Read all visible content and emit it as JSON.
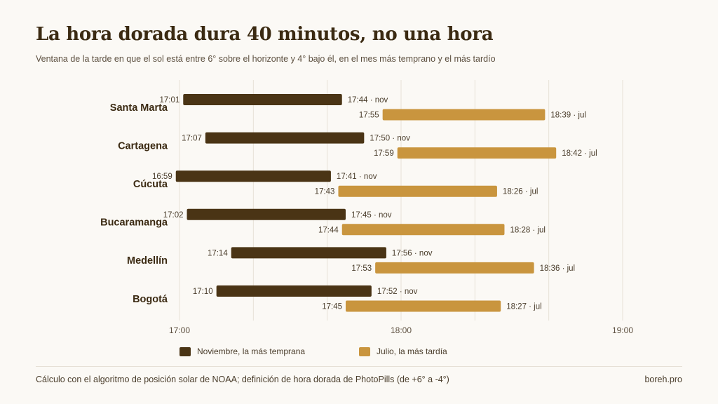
{
  "title": "La hora dorada dura 40 minutos, no una hora",
  "subtitle": "Ventana de la tarde en que el sol está entre 6° sobre el horizonte y 4° bajo él, en el mes más temprano y el más tardío",
  "footer": {
    "source": "Cálculo con el algoritmo de posición solar de NOAA; definición de hora dorada de PhotoPills (de +6° a -4°)",
    "credit": "boreh.pro"
  },
  "colors": {
    "nov": "#4a3415",
    "jul": "#c9953e"
  },
  "chart_data": {
    "type": "bar",
    "orientation": "horizontal-range",
    "x_ticks": [
      "17:00",
      "18:00",
      "19:00"
    ],
    "xlim": [
      "17:00",
      "19:00"
    ],
    "grid": true,
    "legend_position": "bottom",
    "series": [
      {
        "key": "nov",
        "name": "Noviembre, la más temprana",
        "suffix": " · nov"
      },
      {
        "key": "jul",
        "name": "Julio, la más tardía",
        "suffix": " · jul"
      }
    ],
    "categories": [
      "Santa Marta",
      "Cartagena",
      "Cúcuta",
      "Bucaramanga",
      "Medellín",
      "Bogotá"
    ],
    "rows": [
      {
        "city": "Santa Marta",
        "nov": [
          "17:01",
          "17:44"
        ],
        "jul": [
          "17:55",
          "18:39"
        ]
      },
      {
        "city": "Cartagena",
        "nov": [
          "17:07",
          "17:50"
        ],
        "jul": [
          "17:59",
          "18:42"
        ]
      },
      {
        "city": "Cúcuta",
        "nov": [
          "16:59",
          "17:41"
        ],
        "jul": [
          "17:43",
          "18:26"
        ]
      },
      {
        "city": "Bucaramanga",
        "nov": [
          "17:02",
          "17:45"
        ],
        "jul": [
          "17:44",
          "18:28"
        ]
      },
      {
        "city": "Medellín",
        "nov": [
          "17:14",
          "17:56"
        ],
        "jul": [
          "17:53",
          "18:36"
        ]
      },
      {
        "city": "Bogotá",
        "nov": [
          "17:10",
          "17:52"
        ],
        "jul": [
          "17:45",
          "18:27"
        ]
      }
    ]
  }
}
